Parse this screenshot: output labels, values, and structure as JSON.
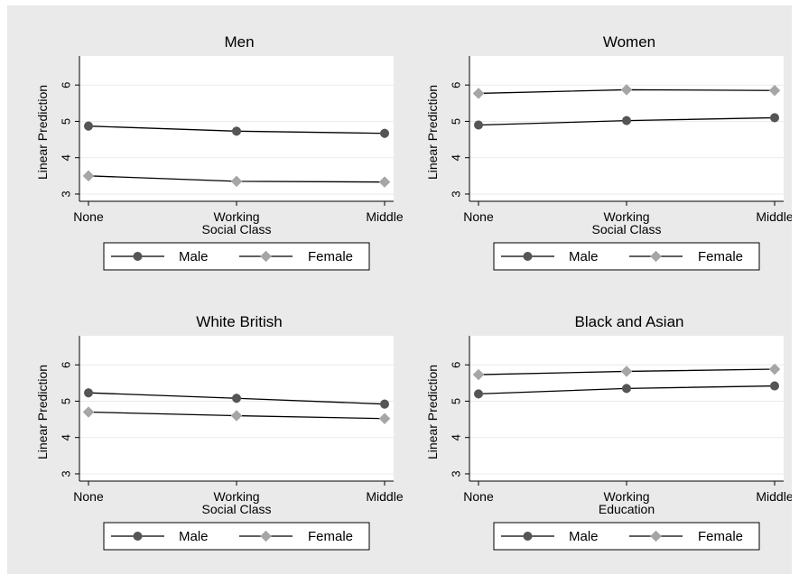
{
  "figure": {
    "background": "#eaeaea",
    "plot_background": "#ffffff"
  },
  "chart_data": [
    {
      "type": "line",
      "title": "Men",
      "xlabel": "Social Class",
      "ylabel": "Linear Prediction",
      "categories": [
        "None",
        "Working",
        "Middle"
      ],
      "yticks": [
        3,
        4,
        5,
        6
      ],
      "ylim": [
        2.8,
        6.8
      ],
      "grid": true,
      "legend": "bottom",
      "series": [
        {
          "name": "Male",
          "values": [
            4.87,
            4.73,
            4.67
          ],
          "color": "#555555",
          "marker": "circle"
        },
        {
          "name": "Female",
          "values": [
            3.5,
            3.35,
            3.33
          ],
          "color": "#a6a6a6",
          "marker": "diamond"
        }
      ]
    },
    {
      "type": "line",
      "title": "Women",
      "xlabel": "Social Class",
      "ylabel": "Linear Prediction",
      "categories": [
        "None",
        "Working",
        "Middle"
      ],
      "yticks": [
        3,
        4,
        5,
        6
      ],
      "ylim": [
        2.8,
        6.8
      ],
      "grid": true,
      "legend": "bottom",
      "series": [
        {
          "name": "Male",
          "values": [
            4.9,
            5.02,
            5.1
          ],
          "color": "#555555",
          "marker": "circle"
        },
        {
          "name": "Female",
          "values": [
            5.77,
            5.87,
            5.85
          ],
          "color": "#a6a6a6",
          "marker": "diamond"
        }
      ]
    },
    {
      "type": "line",
      "title": "White British",
      "xlabel": "Social Class",
      "ylabel": "Linear Prediction",
      "categories": [
        "None",
        "Working",
        "Middle"
      ],
      "yticks": [
        3,
        4,
        5,
        6
      ],
      "ylim": [
        2.8,
        6.8
      ],
      "grid": true,
      "legend": "bottom",
      "series": [
        {
          "name": "Male",
          "values": [
            5.23,
            5.08,
            4.92
          ],
          "color": "#555555",
          "marker": "circle"
        },
        {
          "name": "Female",
          "values": [
            4.7,
            4.6,
            4.52
          ],
          "color": "#a6a6a6",
          "marker": "diamond"
        }
      ]
    },
    {
      "type": "line",
      "title": "Black and Asian",
      "xlabel": "Education",
      "ylabel": "Linear Prediction",
      "categories": [
        "None",
        "Working",
        "Middle"
      ],
      "yticks": [
        3,
        4,
        5,
        6
      ],
      "ylim": [
        2.8,
        6.8
      ],
      "grid": true,
      "legend": "bottom",
      "series": [
        {
          "name": "Male",
          "values": [
            5.2,
            5.35,
            5.42
          ],
          "color": "#555555",
          "marker": "circle"
        },
        {
          "name": "Female",
          "values": [
            5.73,
            5.82,
            5.88
          ],
          "color": "#a6a6a6",
          "marker": "diamond"
        }
      ]
    }
  ]
}
